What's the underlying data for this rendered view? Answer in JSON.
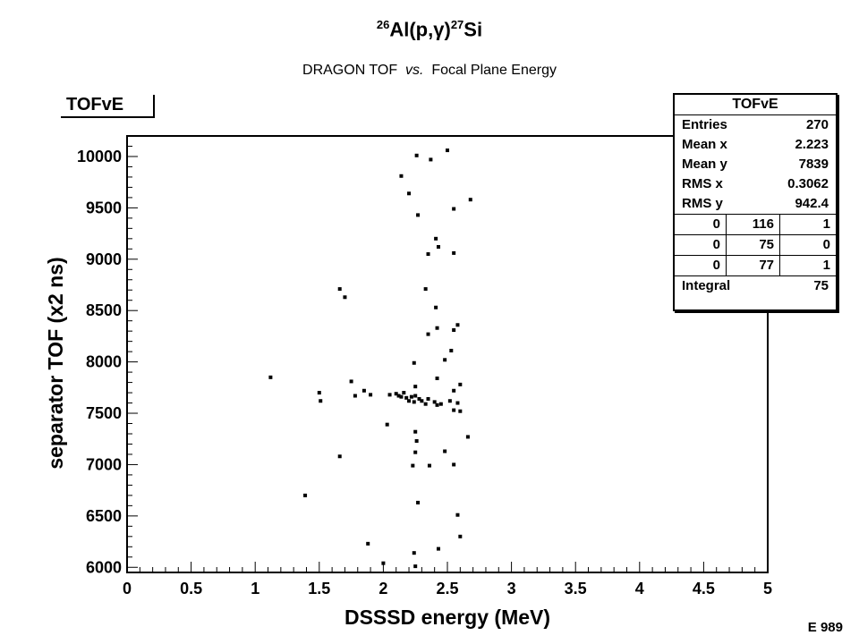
{
  "slide": {
    "title_mass_a": "26",
    "title_element_a": "Al(p,",
    "title_gamma": "γ",
    "title_close": ")",
    "title_mass_b": "27",
    "title_element_b": "Si",
    "subtitle_a": "DRAGON TOF",
    "subtitle_vs": "vs.",
    "subtitle_b": "Focal Plane Energy",
    "code": "E 989"
  },
  "histogram": {
    "name": "TOFvE",
    "stats": {
      "title": "TOFvE",
      "rows": [
        {
          "label": "Entries",
          "value": "270"
        },
        {
          "label": "Mean x",
          "value": "2.223"
        },
        {
          "label": "Mean y",
          "value": "7839"
        },
        {
          "label": "RMS x",
          "value": "0.3062"
        },
        {
          "label": "RMS y",
          "value": "942.4"
        }
      ],
      "grid": [
        [
          "0",
          "116",
          "1"
        ],
        [
          "0",
          "75",
          "0"
        ],
        [
          "0",
          "77",
          "1"
        ]
      ],
      "integral_label": "Integral",
      "integral_value": "75"
    }
  },
  "chart_data": {
    "type": "scatter",
    "xlabel": "DSSSD energy (MeV)",
    "ylabel": "separator TOF (x2 ns)",
    "xlim": [
      0,
      5
    ],
    "ylim": [
      5950,
      10200
    ],
    "xticks": [
      "0",
      "0.5",
      "1",
      "1.5",
      "2",
      "2.5",
      "3",
      "3.5",
      "4",
      "4.5",
      "5"
    ],
    "yticks": [
      "6000",
      "6500",
      "7000",
      "7500",
      "8000",
      "8500",
      "9000",
      "9500",
      "10000"
    ],
    "grid": false,
    "marker_color": "#000000",
    "points": [
      [
        2.26,
        10010
      ],
      [
        2.37,
        9970
      ],
      [
        2.5,
        10060
      ],
      [
        2.14,
        9810
      ],
      [
        2.2,
        9640
      ],
      [
        2.27,
        9430
      ],
      [
        2.55,
        9490
      ],
      [
        2.68,
        9580
      ],
      [
        2.41,
        9200
      ],
      [
        2.43,
        9120
      ],
      [
        2.35,
        9050
      ],
      [
        2.55,
        9060
      ],
      [
        1.66,
        8710
      ],
      [
        1.7,
        8630
      ],
      [
        2.33,
        8710
      ],
      [
        2.41,
        8530
      ],
      [
        2.42,
        8330
      ],
      [
        2.35,
        8270
      ],
      [
        2.55,
        8310
      ],
      [
        2.58,
        8360
      ],
      [
        2.53,
        8110
      ],
      [
        2.48,
        8020
      ],
      [
        2.24,
        7990
      ],
      [
        2.42,
        7840
      ],
      [
        2.6,
        7780
      ],
      [
        2.55,
        7720
      ],
      [
        2.25,
        7760
      ],
      [
        1.12,
        7850
      ],
      [
        1.75,
        7810
      ],
      [
        1.78,
        7670
      ],
      [
        1.85,
        7720
      ],
      [
        1.9,
        7680
      ],
      [
        1.5,
        7700
      ],
      [
        1.51,
        7620
      ],
      [
        2.05,
        7680
      ],
      [
        2.1,
        7690
      ],
      [
        2.12,
        7670
      ],
      [
        2.14,
        7660
      ],
      [
        2.16,
        7700
      ],
      [
        2.18,
        7650
      ],
      [
        2.2,
        7620
      ],
      [
        2.22,
        7660
      ],
      [
        2.24,
        7610
      ],
      [
        2.25,
        7670
      ],
      [
        2.28,
        7640
      ],
      [
        2.3,
        7620
      ],
      [
        2.35,
        7640
      ],
      [
        2.4,
        7610
      ],
      [
        2.45,
        7590
      ],
      [
        2.52,
        7620
      ],
      [
        2.58,
        7600
      ],
      [
        2.55,
        7530
      ],
      [
        2.33,
        7590
      ],
      [
        2.42,
        7580
      ],
      [
        2.6,
        7520
      ],
      [
        2.03,
        7390
      ],
      [
        2.25,
        7320
      ],
      [
        2.66,
        7270
      ],
      [
        2.26,
        7230
      ],
      [
        2.25,
        7120
      ],
      [
        2.48,
        7130
      ],
      [
        1.66,
        7080
      ],
      [
        2.23,
        6990
      ],
      [
        2.36,
        6990
      ],
      [
        2.55,
        7000
      ],
      [
        1.39,
        6700
      ],
      [
        2.27,
        6630
      ],
      [
        2.58,
        6510
      ],
      [
        2.6,
        6300
      ],
      [
        1.88,
        6230
      ],
      [
        2.43,
        6180
      ],
      [
        2.24,
        6140
      ],
      [
        2.0,
        6040
      ],
      [
        2.25,
        6010
      ]
    ]
  }
}
